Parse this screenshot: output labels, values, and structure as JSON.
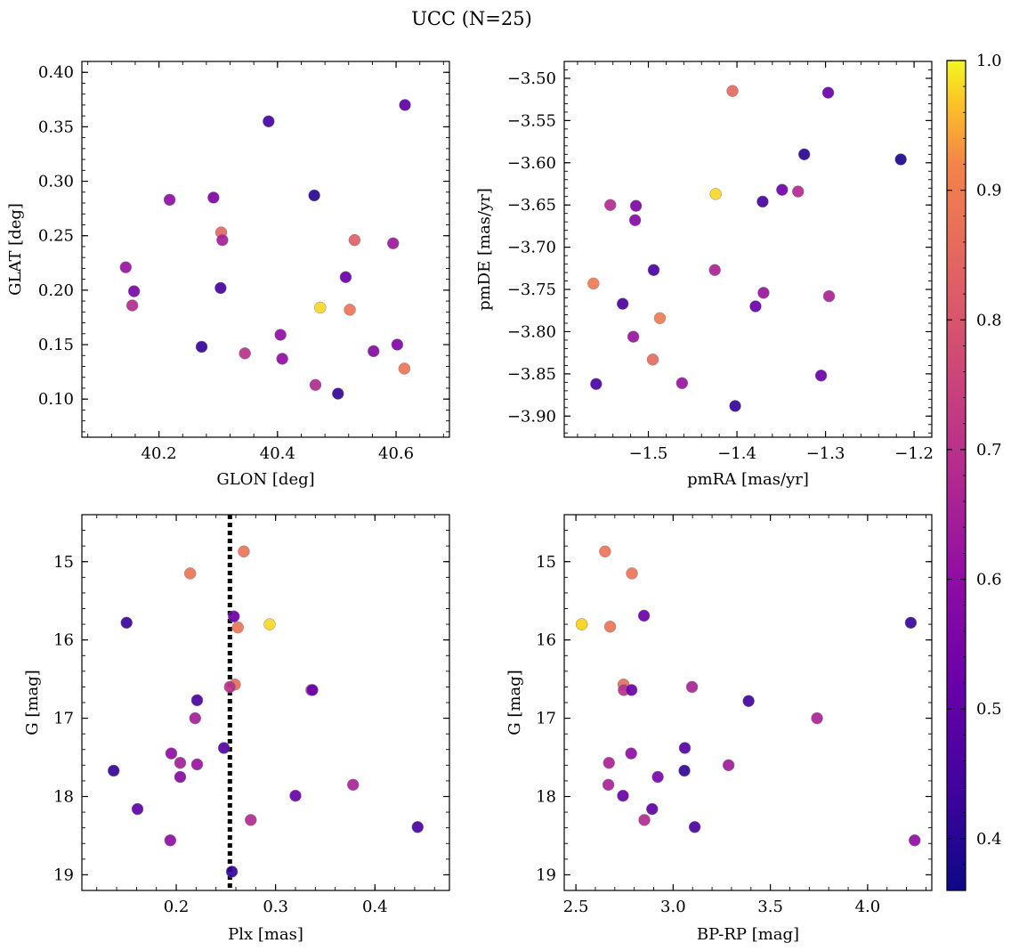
{
  "title": "UCC (N=25)",
  "colormap": "plasma",
  "colorbar": {
    "vmin": 0.36,
    "vmax": 1.0,
    "ticks": [
      0.4,
      0.5,
      0.6,
      0.7,
      0.8,
      0.9,
      1.0
    ]
  },
  "chart_data": [
    {
      "type": "scatter",
      "xlabel": "GLON [deg]",
      "ylabel": "GLAT [deg]",
      "xlim": [
        40.07,
        40.69
      ],
      "ylim": [
        0.065,
        0.41
      ],
      "xticks": [
        40.2,
        40.4,
        40.6
      ],
      "yticks": [
        0.1,
        0.15,
        0.2,
        0.25,
        0.3,
        0.35,
        0.4
      ],
      "ytick_labels": [
        "0.10",
        "0.15",
        "0.20",
        "0.25",
        "0.30",
        "0.35",
        "0.40"
      ],
      "points": [
        {
          "x": 40.385,
          "y": 0.355,
          "c": 0.45
        },
        {
          "x": 40.615,
          "y": 0.37,
          "c": 0.5
        },
        {
          "x": 40.218,
          "y": 0.283,
          "c": 0.6
        },
        {
          "x": 40.292,
          "y": 0.285,
          "c": 0.56
        },
        {
          "x": 40.462,
          "y": 0.287,
          "c": 0.4
        },
        {
          "x": 40.305,
          "y": 0.253,
          "c": 0.85
        },
        {
          "x": 40.307,
          "y": 0.246,
          "c": 0.65
        },
        {
          "x": 40.53,
          "y": 0.246,
          "c": 0.83
        },
        {
          "x": 40.595,
          "y": 0.243,
          "c": 0.63
        },
        {
          "x": 40.144,
          "y": 0.221,
          "c": 0.62
        },
        {
          "x": 40.158,
          "y": 0.199,
          "c": 0.55
        },
        {
          "x": 40.155,
          "y": 0.186,
          "c": 0.68
        },
        {
          "x": 40.304,
          "y": 0.202,
          "c": 0.45
        },
        {
          "x": 40.515,
          "y": 0.212,
          "c": 0.52
        },
        {
          "x": 40.472,
          "y": 0.184,
          "c": 0.98
        },
        {
          "x": 40.522,
          "y": 0.182,
          "c": 0.88
        },
        {
          "x": 40.405,
          "y": 0.159,
          "c": 0.6
        },
        {
          "x": 40.272,
          "y": 0.148,
          "c": 0.42
        },
        {
          "x": 40.345,
          "y": 0.142,
          "c": 0.7
        },
        {
          "x": 40.408,
          "y": 0.137,
          "c": 0.6
        },
        {
          "x": 40.562,
          "y": 0.144,
          "c": 0.58
        },
        {
          "x": 40.602,
          "y": 0.15,
          "c": 0.57
        },
        {
          "x": 40.614,
          "y": 0.128,
          "c": 0.88
        },
        {
          "x": 40.464,
          "y": 0.113,
          "c": 0.68
        },
        {
          "x": 40.502,
          "y": 0.105,
          "c": 0.42
        }
      ]
    },
    {
      "type": "scatter",
      "xlabel": "pmRA [mas/yr]",
      "ylabel": "pmDE [mas/yr]",
      "xlim": [
        -1.595,
        -1.18
      ],
      "ylim": [
        -3.925,
        -3.48
      ],
      "xticks": [
        -1.5,
        -1.4,
        -1.3,
        -1.2
      ],
      "xtick_labels": [
        "−1.5",
        "−1.4",
        "−1.3",
        "−1.2"
      ],
      "yticks": [
        -3.9,
        -3.85,
        -3.8,
        -3.75,
        -3.7,
        -3.65,
        -3.6,
        -3.55,
        -3.5
      ],
      "ytick_labels": [
        "−3.90",
        "−3.85",
        "−3.80",
        "−3.75",
        "−3.70",
        "−3.65",
        "−3.60",
        "−3.55",
        "−3.50"
      ],
      "points": [
        {
          "x": -1.405,
          "y": -3.515,
          "c": 0.85
        },
        {
          "x": -1.297,
          "y": -3.517,
          "c": 0.52
        },
        {
          "x": -1.324,
          "y": -3.59,
          "c": 0.4
        },
        {
          "x": -1.215,
          "y": -3.596,
          "c": 0.38
        },
        {
          "x": -1.424,
          "y": -3.637,
          "c": 0.98
        },
        {
          "x": -1.349,
          "y": -3.632,
          "c": 0.53
        },
        {
          "x": -1.331,
          "y": -3.634,
          "c": 0.68
        },
        {
          "x": -1.543,
          "y": -3.65,
          "c": 0.68
        },
        {
          "x": -1.514,
          "y": -3.651,
          "c": 0.56
        },
        {
          "x": -1.371,
          "y": -3.646,
          "c": 0.45
        },
        {
          "x": -1.515,
          "y": -3.668,
          "c": 0.58
        },
        {
          "x": -1.494,
          "y": -3.727,
          "c": 0.46
        },
        {
          "x": -1.425,
          "y": -3.727,
          "c": 0.66
        },
        {
          "x": -1.562,
          "y": -3.743,
          "c": 0.9
        },
        {
          "x": -1.37,
          "y": -3.754,
          "c": 0.62
        },
        {
          "x": -1.296,
          "y": -3.758,
          "c": 0.66
        },
        {
          "x": -1.529,
          "y": -3.767,
          "c": 0.46
        },
        {
          "x": -1.379,
          "y": -3.77,
          "c": 0.52
        },
        {
          "x": -1.487,
          "y": -3.784,
          "c": 0.9
        },
        {
          "x": -1.517,
          "y": -3.806,
          "c": 0.62
        },
        {
          "x": -1.495,
          "y": -3.833,
          "c": 0.86
        },
        {
          "x": -1.305,
          "y": -3.852,
          "c": 0.52
        },
        {
          "x": -1.462,
          "y": -3.861,
          "c": 0.62
        },
        {
          "x": -1.559,
          "y": -3.862,
          "c": 0.46
        },
        {
          "x": -1.402,
          "y": -3.888,
          "c": 0.42
        }
      ]
    },
    {
      "type": "scatter",
      "xlabel": "Plx [mas]",
      "ylabel": "G [mag]",
      "xlim": [
        0.105,
        0.475
      ],
      "ylim": [
        19.2,
        14.4
      ],
      "y_inverted": true,
      "xticks": [
        0.2,
        0.3,
        0.4
      ],
      "yticks": [
        15,
        16,
        17,
        18,
        19
      ],
      "vline": {
        "x": 0.254,
        "style": "dotted",
        "color": "#000000"
      },
      "points": [
        {
          "x": 0.268,
          "y": 14.87,
          "c": 0.88
        },
        {
          "x": 0.214,
          "y": 15.15,
          "c": 0.88
        },
        {
          "x": 0.15,
          "y": 15.78,
          "c": 0.43
        },
        {
          "x": 0.258,
          "y": 15.7,
          "c": 0.52
        },
        {
          "x": 0.262,
          "y": 15.84,
          "c": 0.88
        },
        {
          "x": 0.294,
          "y": 15.8,
          "c": 0.98
        },
        {
          "x": 0.259,
          "y": 16.57,
          "c": 0.86
        },
        {
          "x": 0.254,
          "y": 16.6,
          "c": 0.7
        },
        {
          "x": 0.336,
          "y": 16.64,
          "c": 0.7
        },
        {
          "x": 0.337,
          "y": 16.64,
          "c": 0.52
        },
        {
          "x": 0.221,
          "y": 16.77,
          "c": 0.46
        },
        {
          "x": 0.219,
          "y": 17.0,
          "c": 0.65
        },
        {
          "x": 0.248,
          "y": 17.38,
          "c": 0.48
        },
        {
          "x": 0.195,
          "y": 17.45,
          "c": 0.6
        },
        {
          "x": 0.204,
          "y": 17.57,
          "c": 0.65
        },
        {
          "x": 0.221,
          "y": 17.59,
          "c": 0.62
        },
        {
          "x": 0.137,
          "y": 17.67,
          "c": 0.42
        },
        {
          "x": 0.204,
          "y": 17.75,
          "c": 0.58
        },
        {
          "x": 0.378,
          "y": 17.85,
          "c": 0.66
        },
        {
          "x": 0.32,
          "y": 17.99,
          "c": 0.52
        },
        {
          "x": 0.161,
          "y": 18.16,
          "c": 0.5
        },
        {
          "x": 0.275,
          "y": 18.3,
          "c": 0.68
        },
        {
          "x": 0.443,
          "y": 18.39,
          "c": 0.46
        },
        {
          "x": 0.194,
          "y": 18.56,
          "c": 0.6
        },
        {
          "x": 0.256,
          "y": 18.96,
          "c": 0.42
        }
      ]
    },
    {
      "type": "scatter",
      "xlabel": "BP-RP [mag]",
      "ylabel": "G [mag]",
      "xlim": [
        2.44,
        4.33
      ],
      "ylim": [
        19.2,
        14.4
      ],
      "y_inverted": true,
      "xticks": [
        2.5,
        3.0,
        3.5,
        4.0
      ],
      "xtick_labels": [
        "2.5",
        "3.0",
        "3.5",
        "4.0"
      ],
      "yticks": [
        15,
        16,
        17,
        18,
        19
      ],
      "points": [
        {
          "x": 2.65,
          "y": 14.87,
          "c": 0.88
        },
        {
          "x": 2.788,
          "y": 15.15,
          "c": 0.88
        },
        {
          "x": 2.53,
          "y": 15.8,
          "c": 0.98
        },
        {
          "x": 2.85,
          "y": 15.69,
          "c": 0.52
        },
        {
          "x": 2.676,
          "y": 15.83,
          "c": 0.88
        },
        {
          "x": 4.222,
          "y": 15.78,
          "c": 0.43
        },
        {
          "x": 2.745,
          "y": 16.57,
          "c": 0.86
        },
        {
          "x": 2.746,
          "y": 16.64,
          "c": 0.7
        },
        {
          "x": 2.786,
          "y": 16.64,
          "c": 0.52
        },
        {
          "x": 3.097,
          "y": 16.6,
          "c": 0.66
        },
        {
          "x": 3.388,
          "y": 16.78,
          "c": 0.44
        },
        {
          "x": 3.74,
          "y": 17.0,
          "c": 0.66
        },
        {
          "x": 3.06,
          "y": 17.38,
          "c": 0.48
        },
        {
          "x": 2.784,
          "y": 17.45,
          "c": 0.6
        },
        {
          "x": 2.67,
          "y": 17.57,
          "c": 0.66
        },
        {
          "x": 3.285,
          "y": 17.6,
          "c": 0.64
        },
        {
          "x": 3.058,
          "y": 17.67,
          "c": 0.42
        },
        {
          "x": 2.921,
          "y": 17.75,
          "c": 0.55
        },
        {
          "x": 2.667,
          "y": 17.85,
          "c": 0.66
        },
        {
          "x": 2.742,
          "y": 17.99,
          "c": 0.52
        },
        {
          "x": 2.892,
          "y": 18.16,
          "c": 0.5
        },
        {
          "x": 2.852,
          "y": 18.3,
          "c": 0.68
        },
        {
          "x": 3.111,
          "y": 18.39,
          "c": 0.46
        },
        {
          "x": 4.242,
          "y": 18.56,
          "c": 0.6
        },
        {
          "x": 2.53,
          "y": 15.8,
          "c": 0.98
        }
      ]
    }
  ]
}
